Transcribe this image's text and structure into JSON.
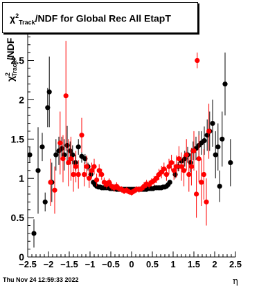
{
  "chart_data": {
    "type": "scatter",
    "title": {
      "symbol": "χ",
      "sup": "2",
      "sub": "Track",
      "rest": "/NDF for Global Rec All EtapT"
    },
    "xlabel": "η",
    "ylabel": {
      "symbol": "χ",
      "sup": "2",
      "sub": "Track",
      "rest": "/NDF"
    },
    "xlim": [
      -2.5,
      2.5
    ],
    "ylim": [
      0,
      2.9
    ],
    "xticks": [
      -2.5,
      -2,
      -1.5,
      -1,
      -0.5,
      0,
      0.5,
      1,
      1.5,
      2,
      2.5
    ],
    "xtick_labels": [
      "−2.5",
      "−2",
      "−1.5",
      "−1",
      "−0.5",
      "0",
      "0.5",
      "1",
      "1.5",
      "2",
      "2.5"
    ],
    "yticks": [
      0,
      0.5,
      1,
      1.5,
      2,
      2.5
    ],
    "ytick_labels": [
      "0",
      "0.5",
      "1",
      "1.5",
      "2",
      "2.5"
    ],
    "grid": false,
    "legend": "none",
    "series": [
      {
        "color": "#000000",
        "points": [
          [
            -2.45,
            1.3,
            0.1
          ],
          [
            -2.35,
            0.3,
            0.18
          ],
          [
            -2.25,
            1.1,
            0.55
          ],
          [
            -2.15,
            1.4,
            0.18
          ],
          [
            -2.08,
            0.7,
            0.12
          ],
          [
            -2.02,
            1.9,
            0.25
          ],
          [
            -1.98,
            2.1,
            0.45
          ],
          [
            -1.92,
            0.95,
            0.25
          ],
          [
            -1.82,
            1.3,
            0.2
          ],
          [
            -1.75,
            1.35,
            0.18
          ],
          [
            -1.68,
            1.38,
            0.15
          ],
          [
            -1.62,
            1.3,
            0.2
          ],
          [
            -1.55,
            1.42,
            0.25
          ],
          [
            -1.48,
            1.35,
            0.12
          ],
          [
            -1.42,
            1.3,
            0.12
          ],
          [
            -1.35,
            1.2,
            0.1
          ],
          [
            -1.28,
            1.4,
            0.1
          ],
          [
            -1.2,
            1.28,
            0.08
          ],
          [
            -1.12,
            1.25,
            0.06
          ],
          [
            -1.05,
            1.15,
            0.05
          ],
          [
            -0.98,
            1.05,
            0.04
          ],
          [
            -0.92,
            0.95,
            0.03
          ],
          [
            -0.88,
            0.92,
            0.02
          ],
          [
            -0.84,
            0.9,
            0.02
          ],
          [
            -0.8,
            0.89,
            0.02
          ],
          [
            -0.76,
            0.89,
            0.02
          ],
          [
            -0.72,
            0.88,
            0.02
          ],
          [
            -0.68,
            0.88,
            0.02
          ],
          [
            -0.64,
            0.88,
            0.02
          ],
          [
            -0.6,
            0.88,
            0.02
          ],
          [
            -0.56,
            0.88,
            0.02
          ],
          [
            -0.52,
            0.87,
            0.02
          ],
          [
            -0.48,
            0.87,
            0.02
          ],
          [
            -0.44,
            0.87,
            0.02
          ],
          [
            -0.4,
            0.87,
            0.02
          ],
          [
            -0.36,
            0.86,
            0.02
          ],
          [
            -0.32,
            0.86,
            0.02
          ],
          [
            -0.28,
            0.86,
            0.02
          ],
          [
            -0.24,
            0.86,
            0.02
          ],
          [
            -0.2,
            0.86,
            0.02
          ],
          [
            -0.16,
            0.86,
            0.02
          ],
          [
            -0.12,
            0.86,
            0.02
          ],
          [
            -0.08,
            0.86,
            0.02
          ],
          [
            -0.04,
            0.86,
            0.02
          ],
          [
            0.0,
            0.86,
            0.02
          ],
          [
            0.04,
            0.86,
            0.02
          ],
          [
            0.08,
            0.86,
            0.02
          ],
          [
            0.12,
            0.86,
            0.02
          ],
          [
            0.16,
            0.86,
            0.02
          ],
          [
            0.2,
            0.86,
            0.02
          ],
          [
            0.24,
            0.86,
            0.02
          ],
          [
            0.28,
            0.86,
            0.02
          ],
          [
            0.32,
            0.86,
            0.02
          ],
          [
            0.36,
            0.86,
            0.02
          ],
          [
            0.4,
            0.87,
            0.02
          ],
          [
            0.44,
            0.87,
            0.02
          ],
          [
            0.48,
            0.87,
            0.02
          ],
          [
            0.52,
            0.87,
            0.02
          ],
          [
            0.56,
            0.88,
            0.02
          ],
          [
            0.6,
            0.88,
            0.02
          ],
          [
            0.64,
            0.88,
            0.02
          ],
          [
            0.68,
            0.88,
            0.02
          ],
          [
            0.72,
            0.88,
            0.02
          ],
          [
            0.76,
            0.89,
            0.02
          ],
          [
            0.8,
            0.89,
            0.02
          ],
          [
            0.84,
            0.9,
            0.02
          ],
          [
            0.88,
            0.92,
            0.02
          ],
          [
            0.92,
            0.95,
            0.03
          ],
          [
            1.05,
            1.05,
            0.05
          ],
          [
            1.12,
            1.15,
            0.06
          ],
          [
            1.2,
            1.22,
            0.08
          ],
          [
            1.28,
            1.25,
            0.1
          ],
          [
            1.35,
            1.3,
            0.1
          ],
          [
            1.42,
            1.2,
            0.12
          ],
          [
            1.48,
            1.35,
            0.12
          ],
          [
            1.55,
            1.38,
            0.15
          ],
          [
            1.62,
            1.42,
            0.18
          ],
          [
            1.68,
            1.45,
            0.15
          ],
          [
            1.75,
            1.48,
            0.18
          ],
          [
            1.82,
            1.55,
            0.2
          ],
          [
            1.88,
            1.6,
            0.25
          ],
          [
            1.95,
            1.7,
            0.3
          ],
          [
            2.02,
            1.3,
            0.3
          ],
          [
            2.08,
            1.4,
            0.3
          ],
          [
            2.12,
            0.9,
            0.2
          ],
          [
            2.18,
            1.5,
            0.35
          ],
          [
            2.25,
            2.2,
            0.4
          ],
          [
            2.38,
            1.2,
            0.3
          ]
        ]
      },
      {
        "color": "#ff0000",
        "points": [
          [
            -1.95,
            0.95,
            0.3
          ],
          [
            -1.85,
            0.85,
            0.3
          ],
          [
            -1.72,
            1.45,
            0.4
          ],
          [
            -1.65,
            1.25,
            0.3
          ],
          [
            -1.58,
            2.05,
            0.7
          ],
          [
            -1.52,
            1.2,
            0.3
          ],
          [
            -1.46,
            1.25,
            0.28
          ],
          [
            -1.4,
            1.05,
            0.22
          ],
          [
            -1.34,
            1.15,
            0.2
          ],
          [
            -1.28,
            1.05,
            0.18
          ],
          [
            -1.2,
            1.55,
            0.22
          ],
          [
            -1.14,
            1.05,
            0.15
          ],
          [
            -1.08,
            1.15,
            0.14
          ],
          [
            -1.02,
            1.0,
            0.12
          ],
          [
            -0.96,
            1.1,
            0.1
          ],
          [
            -0.9,
            1.15,
            0.1
          ],
          [
            -0.84,
            0.98,
            0.08
          ],
          [
            -0.78,
            1.1,
            0.08
          ],
          [
            -0.72,
            1.05,
            0.07
          ],
          [
            -0.66,
            0.95,
            0.06
          ],
          [
            -0.6,
            0.92,
            0.05
          ],
          [
            -0.54,
            0.95,
            0.05
          ],
          [
            -0.48,
            0.9,
            0.05
          ],
          [
            -0.42,
            0.88,
            0.05
          ],
          [
            -0.36,
            0.9,
            0.05
          ],
          [
            -0.3,
            0.87,
            0.04
          ],
          [
            -0.24,
            0.86,
            0.04
          ],
          [
            -0.18,
            0.84,
            0.04
          ],
          [
            -0.12,
            0.85,
            0.04
          ],
          [
            -0.06,
            0.83,
            0.04
          ],
          [
            0.0,
            0.82,
            0.04
          ],
          [
            0.06,
            0.84,
            0.04
          ],
          [
            0.12,
            0.86,
            0.04
          ],
          [
            0.18,
            0.86,
            0.04
          ],
          [
            0.24,
            0.87,
            0.04
          ],
          [
            0.3,
            0.9,
            0.05
          ],
          [
            0.36,
            0.93,
            0.05
          ],
          [
            0.42,
            0.92,
            0.05
          ],
          [
            0.48,
            0.95,
            0.05
          ],
          [
            0.54,
            0.97,
            0.06
          ],
          [
            0.6,
            1.0,
            0.06
          ],
          [
            0.66,
            1.05,
            0.07
          ],
          [
            0.72,
            1.08,
            0.08
          ],
          [
            0.78,
            1.12,
            0.08
          ],
          [
            0.84,
            1.05,
            0.08
          ],
          [
            0.9,
            1.15,
            0.1
          ],
          [
            0.96,
            1.2,
            0.1
          ],
          [
            1.02,
            1.1,
            0.12
          ],
          [
            1.08,
            1.15,
            0.14
          ],
          [
            1.14,
            1.25,
            0.16
          ],
          [
            1.2,
            1.15,
            0.18
          ],
          [
            1.26,
            1.1,
            0.2
          ],
          [
            1.32,
            1.3,
            0.2
          ],
          [
            1.38,
            1.05,
            0.22
          ],
          [
            1.44,
            1.15,
            0.24
          ],
          [
            1.5,
            1.35,
            0.25
          ],
          [
            1.56,
            0.8,
            0.3
          ],
          [
            1.58,
            2.5,
            0.1
          ],
          [
            1.62,
            1.25,
            0.3
          ],
          [
            1.68,
            0.95,
            0.3
          ],
          [
            1.74,
            1.05,
            0.32
          ],
          [
            1.8,
            0.7,
            0.3
          ],
          [
            1.86,
            1.6,
            0.35
          ]
        ]
      }
    ]
  },
  "footer": {
    "date_text": "Thu Nov 24 12:59:33 2022"
  }
}
